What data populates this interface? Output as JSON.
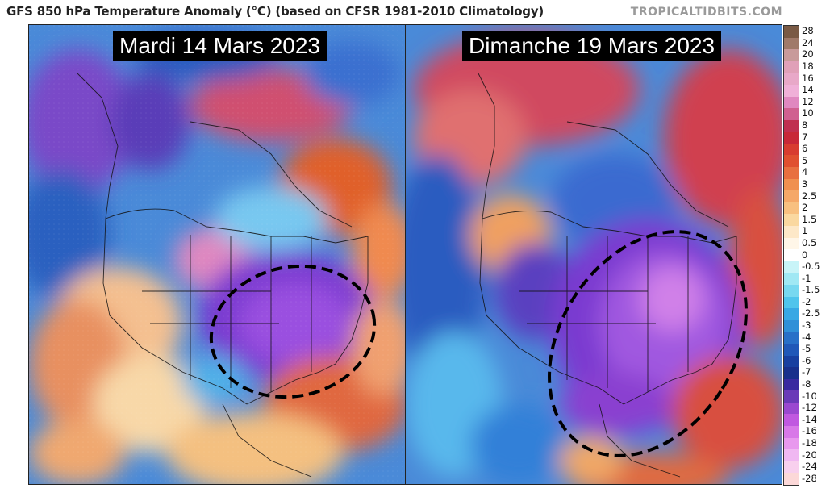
{
  "header": {
    "title": "GFS 850 hPa Temperature Anomaly (°C) (based on CFSR 1981-2010 Climatology)",
    "brand": "TROPICALTIDBITS.COM"
  },
  "panels": [
    {
      "date_label": "Mardi 14 Mars 2023"
    },
    {
      "date_label": "Dimanche 19 Mars 2023"
    }
  ],
  "legend": {
    "labels": [
      "28",
      "24",
      "20",
      "18",
      "16",
      "14",
      "12",
      "10",
      "8",
      "7",
      "6",
      "5",
      "4",
      "3",
      "2.5",
      "2",
      "1.5",
      "1",
      "0.5",
      "0",
      "-0.5",
      "-1",
      "-1.5",
      "-2",
      "-2.5",
      "-3",
      "-4",
      "-5",
      "-6",
      "-7",
      "-8",
      "-10",
      "-12",
      "-14",
      "-16",
      "-18",
      "-20",
      "-24",
      "-28"
    ],
    "colors": [
      "#7a5a45",
      "#a07a6a",
      "#c89a9a",
      "#e0a0b8",
      "#e8a8c8",
      "#f0b0d8",
      "#e088c0",
      "#d06090",
      "#c03050",
      "#c82838",
      "#d83c30",
      "#e05030",
      "#e87040",
      "#f09050",
      "#f5a868",
      "#f8c080",
      "#fad8a0",
      "#fde8c8",
      "#fff6e8",
      "#ffffff",
      "#c8f4f8",
      "#a0e8f4",
      "#78d8f0",
      "#50c4ec",
      "#38a8e4",
      "#3090d8",
      "#2870c8",
      "#2058b8",
      "#1840a0",
      "#18308c",
      "#3a2aa0",
      "#6a3ab8",
      "#9a48d0",
      "#c058e0",
      "#d878e8",
      "#e898ee",
      "#f0b8f2",
      "#f8d0ee",
      "#fcd8d8"
    ],
    "anomaly_ellipses": 2
  }
}
